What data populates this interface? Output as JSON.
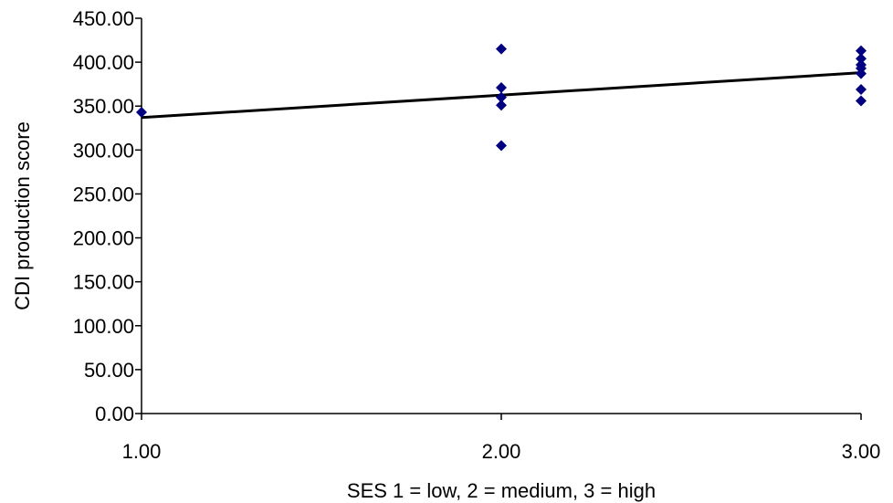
{
  "chart_data": {
    "type": "scatter",
    "title": "",
    "xlabel": "SES 1 = low, 2 = medium, 3 = high",
    "ylabel": "CDI production score",
    "xlim": [
      1.0,
      3.0
    ],
    "ylim": [
      0.0,
      450.0
    ],
    "x_ticks": [
      1.0,
      2.0,
      3.0
    ],
    "x_tick_labels": [
      "1.00",
      "2.00",
      "3.00"
    ],
    "y_ticks": [
      0,
      50,
      100,
      150,
      200,
      250,
      300,
      350,
      400,
      450
    ],
    "y_tick_labels": [
      "0.00",
      "50.00",
      "100.00",
      "150.00",
      "200.00",
      "250.00",
      "300.00",
      "350.00",
      "400.00",
      "450.00"
    ],
    "grid": false,
    "legend": "none",
    "series": [
      {
        "marker": "diamond",
        "color": "#000080",
        "points": [
          {
            "x": 1.0,
            "y": 343
          },
          {
            "x": 2.0,
            "y": 415
          },
          {
            "x": 2.0,
            "y": 371
          },
          {
            "x": 2.0,
            "y": 360
          },
          {
            "x": 2.0,
            "y": 351
          },
          {
            "x": 2.0,
            "y": 305
          },
          {
            "x": 3.0,
            "y": 413
          },
          {
            "x": 3.0,
            "y": 404
          },
          {
            "x": 3.0,
            "y": 397
          },
          {
            "x": 3.0,
            "y": 393
          },
          {
            "x": 3.0,
            "y": 387
          },
          {
            "x": 3.0,
            "y": 369
          },
          {
            "x": 3.0,
            "y": 356
          }
        ]
      }
    ],
    "trendline": {
      "type": "linear",
      "color": "#000000",
      "start": {
        "x": 1.0,
        "y": 337
      },
      "end": {
        "x": 3.0,
        "y": 388
      }
    }
  }
}
